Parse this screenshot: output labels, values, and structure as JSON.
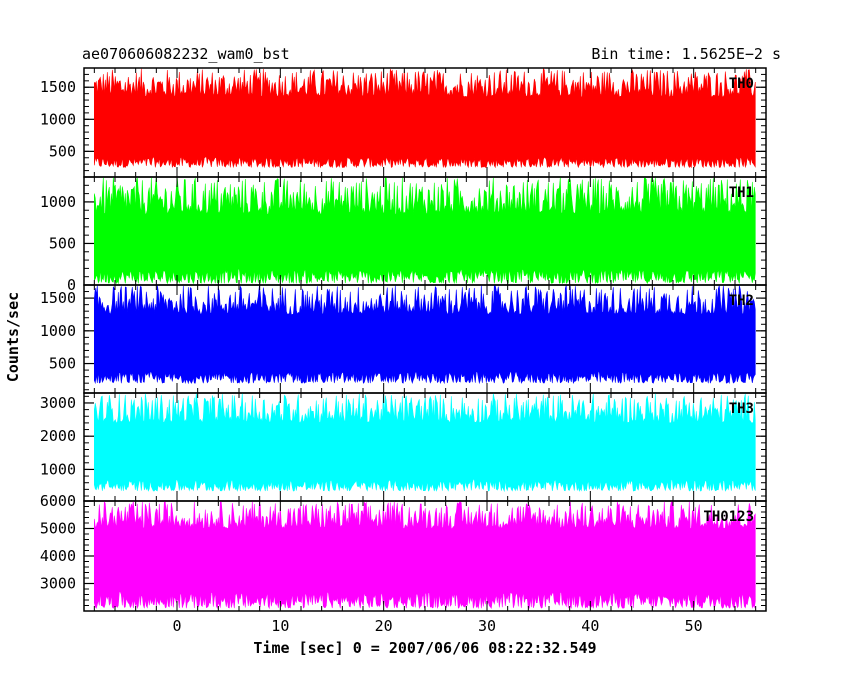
{
  "header": {
    "left_title": "ae070606082232_wam0_bst",
    "right_title": "Bin time: 1.5625E−2 s"
  },
  "chart_data": {
    "type": "line",
    "title": "ae070606082232_wam0_bst",
    "subtitle": "Bin time: 1.5625E−2 s",
    "xlabel": "Time [sec] 0 = 2007/06/06 08:22:32.549",
    "ylabel": "Counts/sec",
    "xlim": [
      -9,
      57
    ],
    "x_data_range": [
      -8,
      56
    ],
    "xticks": [
      0,
      10,
      20,
      30,
      40,
      50
    ],
    "xtick_labels": [
      "0",
      "10",
      "20",
      "30",
      "40",
      "50"
    ],
    "grid": false,
    "panels": [
      {
        "name": "TH0",
        "color": "#ff0000",
        "ylim": [
          100,
          1800
        ],
        "yticks": [
          500,
          1000,
          1500
        ],
        "ytick_labels": [
          "500",
          "1000",
          "1500"
        ],
        "band_low": [
          250,
          420
        ],
        "band_high": [
          1350,
          1790
        ]
      },
      {
        "name": "TH1",
        "color": "#00ff00",
        "ylim": [
          0,
          1300
        ],
        "yticks": [
          0,
          500,
          1000
        ],
        "ytick_labels": [
          "0",
          "500",
          "1000"
        ],
        "band_low": [
          20,
          200
        ],
        "band_high": [
          850,
          1300
        ]
      },
      {
        "name": "TH2",
        "color": "#0000ff",
        "ylim": [
          50,
          1700
        ],
        "yticks": [
          500,
          1000,
          1500
        ],
        "ytick_labels": [
          "500",
          "1000",
          "1500"
        ],
        "band_low": [
          200,
          380
        ],
        "band_high": [
          1250,
          1700
        ]
      },
      {
        "name": "TH3",
        "color": "#00ffff",
        "ylim": [
          50,
          3300
        ],
        "yticks": [
          1000,
          2000,
          3000
        ],
        "ytick_labels": [
          "1000",
          "2000",
          "3000"
        ],
        "band_low": [
          350,
          700
        ],
        "band_high": [
          2400,
          3300
        ]
      },
      {
        "name": "TH0123",
        "color": "#ff00ff",
        "ylim": [
          2000,
          6000
        ],
        "yticks": [
          3000,
          4000,
          5000,
          6000
        ],
        "ytick_labels": [
          "3000",
          "4000",
          "5000",
          "6000"
        ],
        "band_low": [
          2100,
          2700
        ],
        "band_high": [
          5000,
          6000
        ]
      }
    ]
  }
}
